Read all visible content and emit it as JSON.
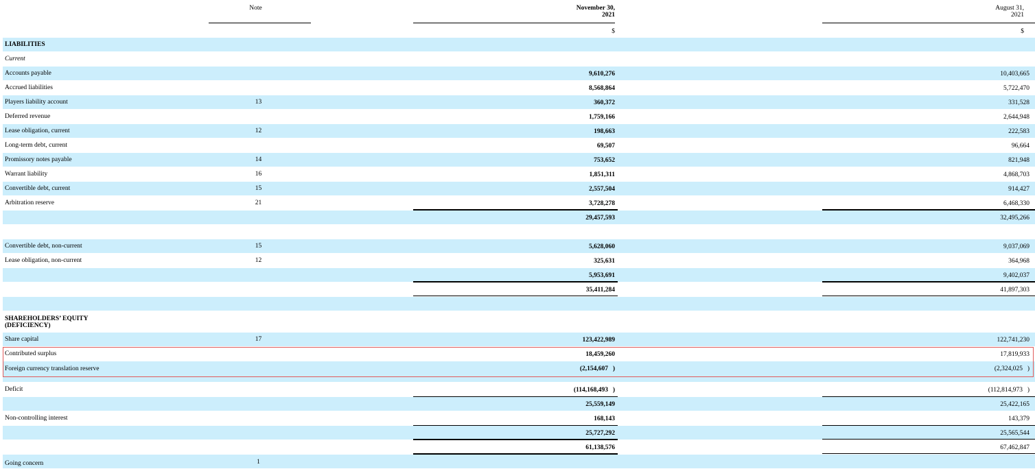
{
  "header": {
    "note_label": "Note",
    "col1_line1": "November 30,",
    "col1_line2": "2021",
    "col2_line1": "August 31,",
    "col2_line2": "2021",
    "currency1": "$",
    "currency2": "$"
  },
  "rows": [
    {
      "label": "LIABILITIES",
      "note": "",
      "v1": "",
      "v2": "",
      "style": "bold"
    },
    {
      "label": "Current",
      "note": "",
      "v1": "",
      "v2": "",
      "style": "ital"
    },
    {
      "label": "Accounts payable",
      "note": "",
      "v1": "9,610,276",
      "v2": "10,403,665"
    },
    {
      "label": "Accrued liabilities",
      "note": "",
      "v1": "8,568,864",
      "v2": "5,722,470"
    },
    {
      "label": "Players liability account",
      "note": "13",
      "v1": "360,372",
      "v2": "331,528"
    },
    {
      "label": "Deferred revenue",
      "note": "",
      "v1": "1,759,166",
      "v2": "2,644,948"
    },
    {
      "label": "Lease obligation, current",
      "note": "12",
      "v1": "198,663",
      "v2": "222,583"
    },
    {
      "label": "Long-term debt, current",
      "note": "",
      "v1": "69,507",
      "v2": "96,664"
    },
    {
      "label": "Promissory notes payable",
      "note": "14",
      "v1": "753,652",
      "v2": "821,948"
    },
    {
      "label": "Warrant liability",
      "note": "16",
      "v1": "1,851,311",
      "v2": "4,868,703"
    },
    {
      "label": "Convertible debt, current",
      "note": "15",
      "v1": "2,557,504",
      "v2": "914,427"
    },
    {
      "label": "Arbitration reserve",
      "note": "21",
      "v1": "3,728,278",
      "v2": "6,468,330"
    },
    {
      "label": "",
      "note": "",
      "v1": "29,457,593",
      "v2": "32,495,266"
    },
    {
      "label": "",
      "note": "",
      "v1": "",
      "v2": ""
    },
    {
      "label": "Convertible debt, non-current",
      "note": "15",
      "v1": "5,628,060",
      "v2": "9,037,069"
    },
    {
      "label": "Lease obligation, non-current",
      "note": "12",
      "v1": "325,631",
      "v2": "364,968"
    },
    {
      "label": "",
      "note": "",
      "v1": "5,953,691",
      "v2": "9,402,037"
    },
    {
      "label": "",
      "note": "",
      "v1": "35,411,284",
      "v2": "41,897,303"
    },
    {
      "label": "",
      "note": "",
      "v1": "",
      "v2": ""
    },
    {
      "label": "SHAREHOLDERS’ EQUITY (DEFICIENCY)",
      "note": "",
      "v1": "",
      "v2": "",
      "style": "bold"
    },
    {
      "label": "Share capital",
      "note": "17",
      "v1": "123,422,989",
      "v2": "122,741,230"
    },
    {
      "label": "Contributed surplus",
      "note": "",
      "v1": "18,459,260",
      "v2": "17,819,933"
    },
    {
      "label": "Foreign currency translation reserve",
      "note": "",
      "v1": "(2,154,607",
      "v2": "(2,324,025"
    },
    {
      "label": "Deficit",
      "note": "",
      "v1": "(114,168,493",
      "v2": "(112,814,973"
    },
    {
      "label": "",
      "note": "",
      "v1": "25,559,149",
      "v2": "25,422,165"
    },
    {
      "label": "Non-controlling interest",
      "note": "",
      "v1": "168,143",
      "v2": "143,379"
    },
    {
      "label": "",
      "note": "",
      "v1": "25,727,292",
      "v2": "25,565,544"
    },
    {
      "label": "",
      "note": "",
      "v1": "61,138,576",
      "v2": "67,462,847"
    },
    {
      "label": "Going concern",
      "note": "1",
      "v1": "",
      "v2": ""
    }
  ]
}
